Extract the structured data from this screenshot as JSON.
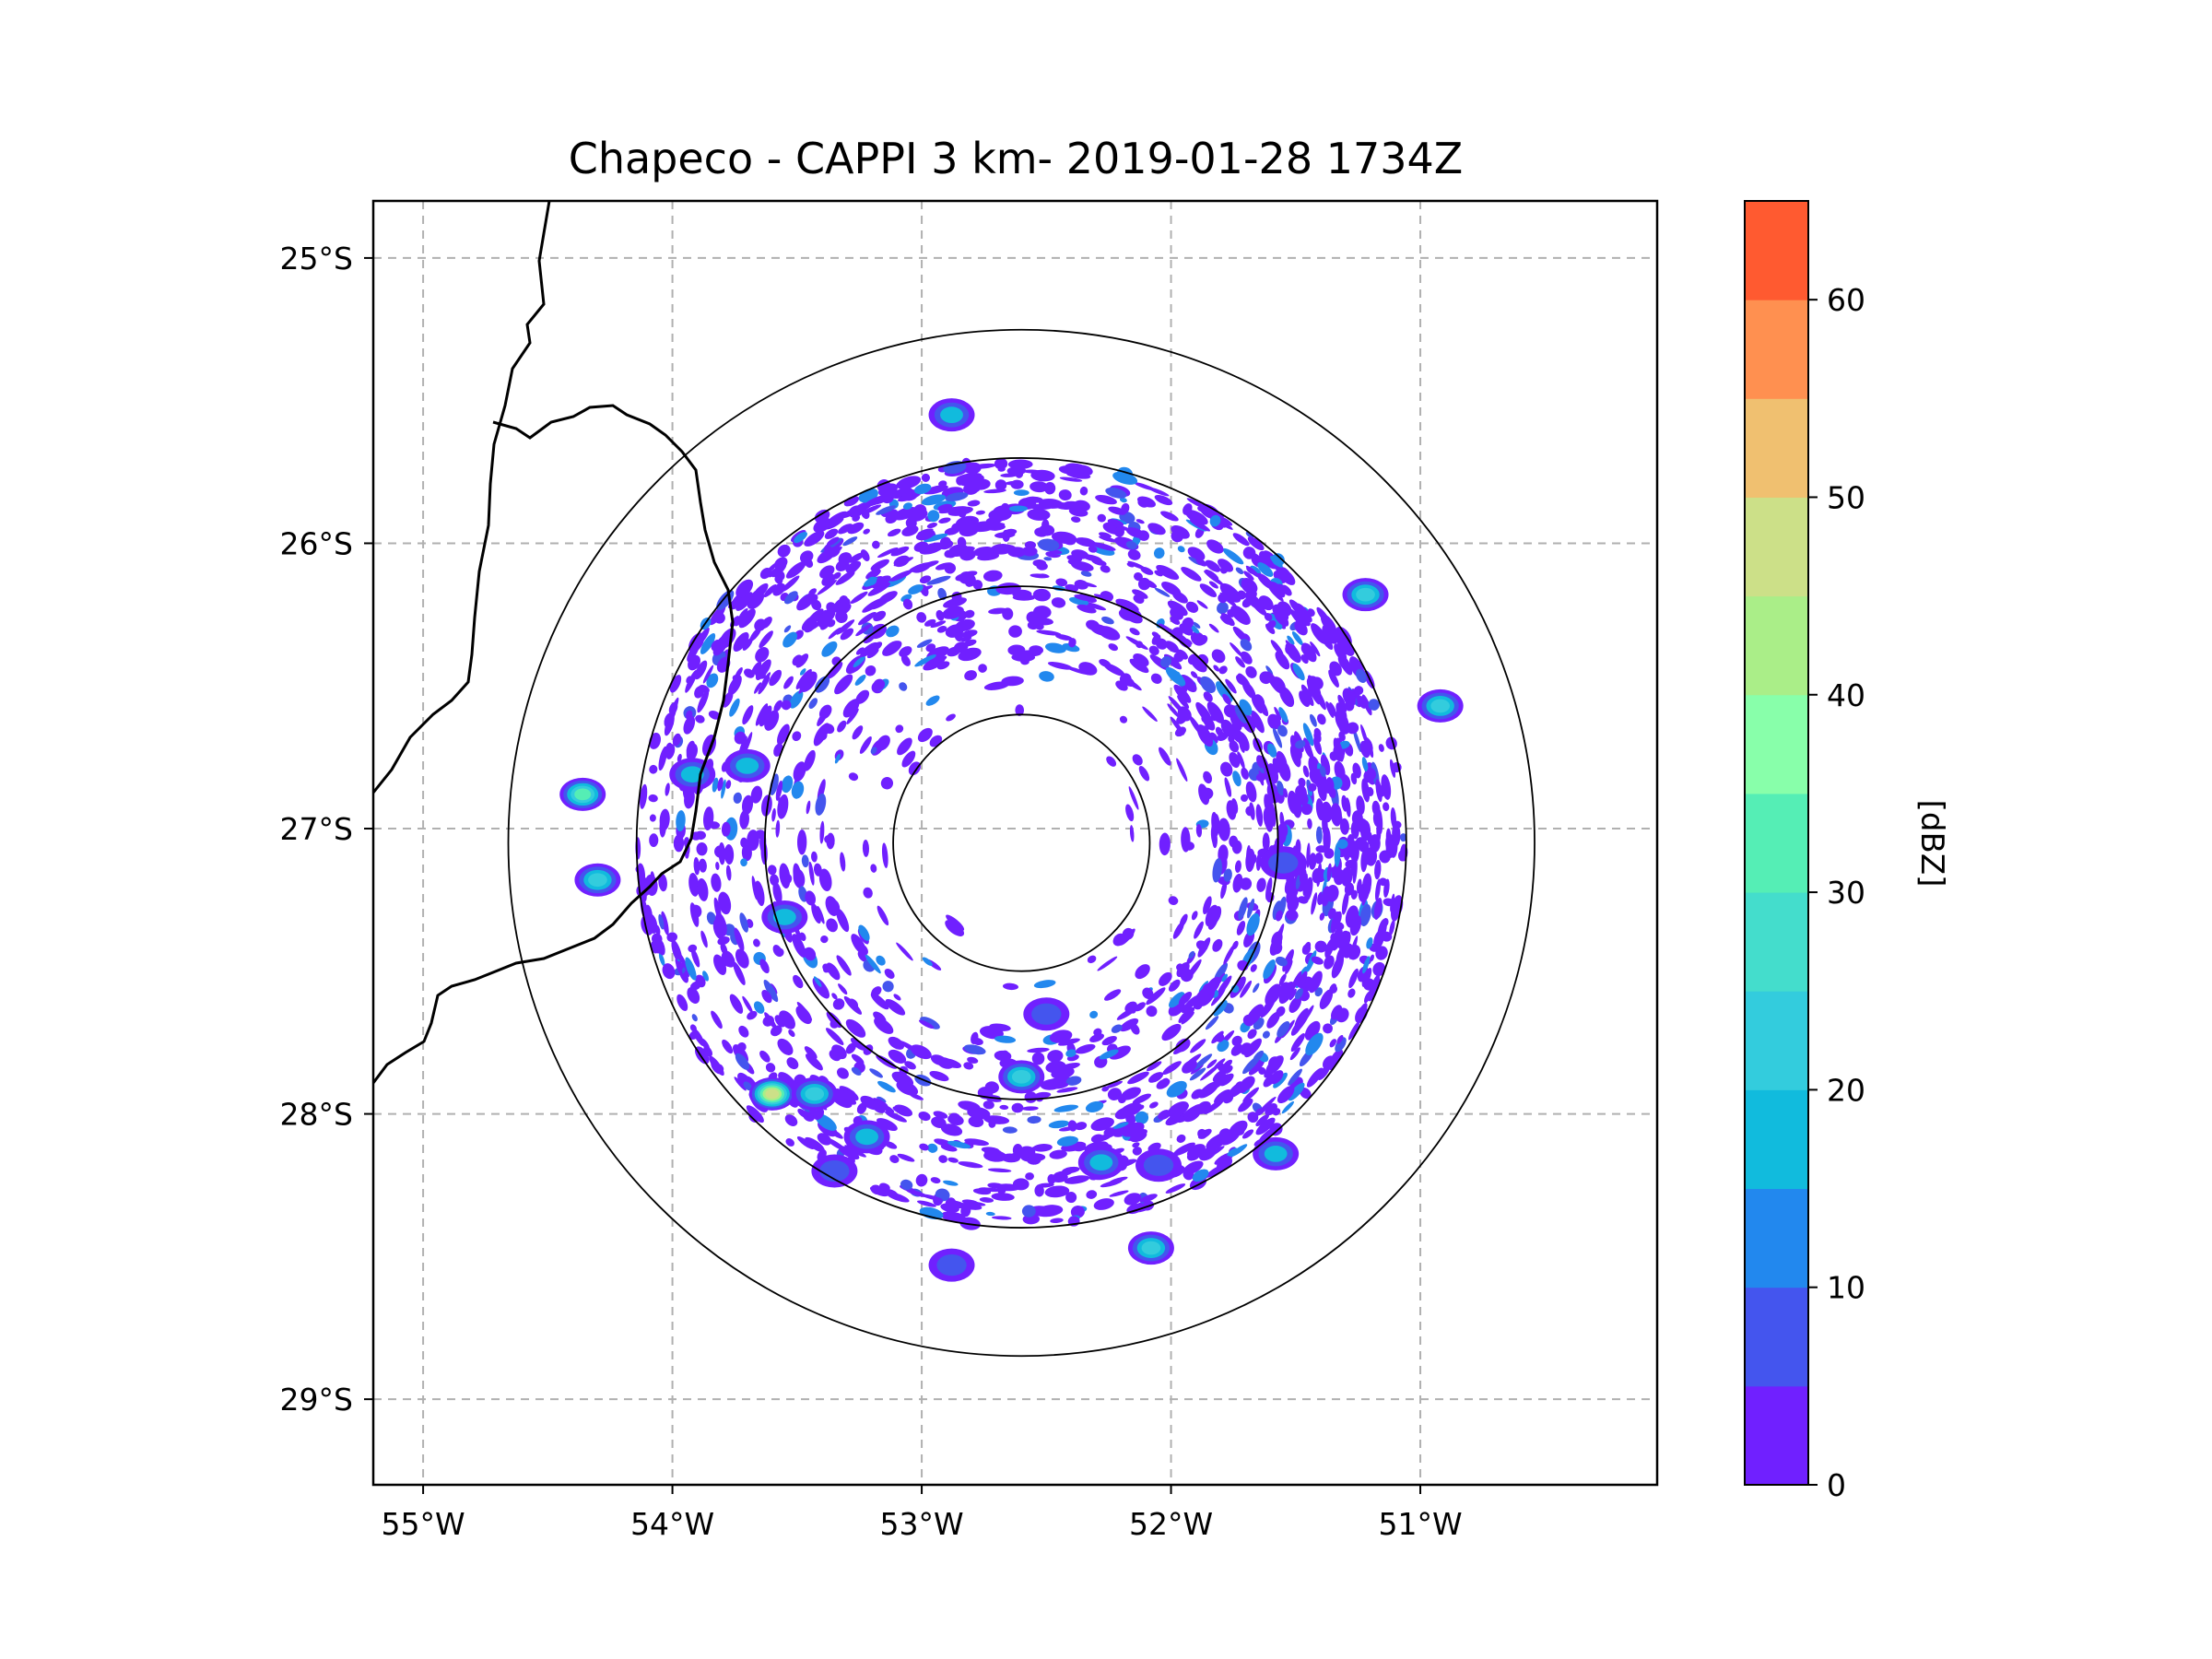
{
  "chart_data": {
    "type": "heatmap",
    "title": "Chapeco - CAPPI 3 km- 2019-01-28 1734Z",
    "xlabel": "",
    "ylabel": "",
    "x_ticks": [
      "55°W",
      "54°W",
      "53°W",
      "52°W",
      "51°W"
    ],
    "y_ticks": [
      "25°S",
      "26°S",
      "27°S",
      "28°S",
      "29°S"
    ],
    "xlim": [
      -55.2,
      -50.05
    ],
    "ylim": [
      -29.3,
      -24.8
    ],
    "grid": true,
    "radar_center": {
      "lon": -52.6,
      "lat": -27.05
    },
    "range_rings_km": [
      50,
      100,
      150,
      200
    ],
    "colorbar": {
      "label": "[dBZ]",
      "ticks": [
        "0",
        "10",
        "20",
        "30",
        "40",
        "50",
        "60"
      ],
      "range": [
        0,
        65
      ],
      "step": 5,
      "colors": [
        "#7020ff",
        "#4455ee",
        "#2288ee",
        "#11bbdd",
        "#33ccdd",
        "#44ddcc",
        "#55eeb5",
        "#88ffaa",
        "#aaee88",
        "#cce088",
        "#f0c070",
        "#ff9050",
        "#ff5a30",
        "#ff2020"
      ]
    },
    "echoes": [
      {
        "lon": -54.36,
        "lat": -26.88,
        "dbz": 32
      },
      {
        "lon": -54.3,
        "lat": -27.18,
        "dbz": 30
      },
      {
        "lon": -53.92,
        "lat": -26.81,
        "dbz": 22
      },
      {
        "lon": -53.7,
        "lat": -26.78,
        "dbz": 18
      },
      {
        "lon": -53.55,
        "lat": -27.31,
        "dbz": 22
      },
      {
        "lon": -53.6,
        "lat": -27.93,
        "dbz": 55
      },
      {
        "lon": -53.43,
        "lat": -27.93,
        "dbz": 25
      },
      {
        "lon": -53.22,
        "lat": -28.08,
        "dbz": 18
      },
      {
        "lon": -53.35,
        "lat": -28.2,
        "dbz": 15
      },
      {
        "lon": -52.6,
        "lat": -27.87,
        "dbz": 28
      },
      {
        "lon": -52.28,
        "lat": -28.17,
        "dbz": 20
      },
      {
        "lon": -52.05,
        "lat": -28.18,
        "dbz": 15
      },
      {
        "lon": -52.08,
        "lat": -28.47,
        "dbz": 25
      },
      {
        "lon": -51.58,
        "lat": -28.14,
        "dbz": 20
      },
      {
        "lon": -52.88,
        "lat": -28.53,
        "dbz": 12
      },
      {
        "lon": -51.22,
        "lat": -26.18,
        "dbz": 30
      },
      {
        "lon": -50.92,
        "lat": -26.57,
        "dbz": 28
      },
      {
        "lon": -52.88,
        "lat": -25.55,
        "dbz": 20
      },
      {
        "lon": -51.55,
        "lat": -27.12,
        "dbz": 15
      },
      {
        "lon": -52.5,
        "lat": -27.65,
        "dbz": 12
      }
    ]
  }
}
